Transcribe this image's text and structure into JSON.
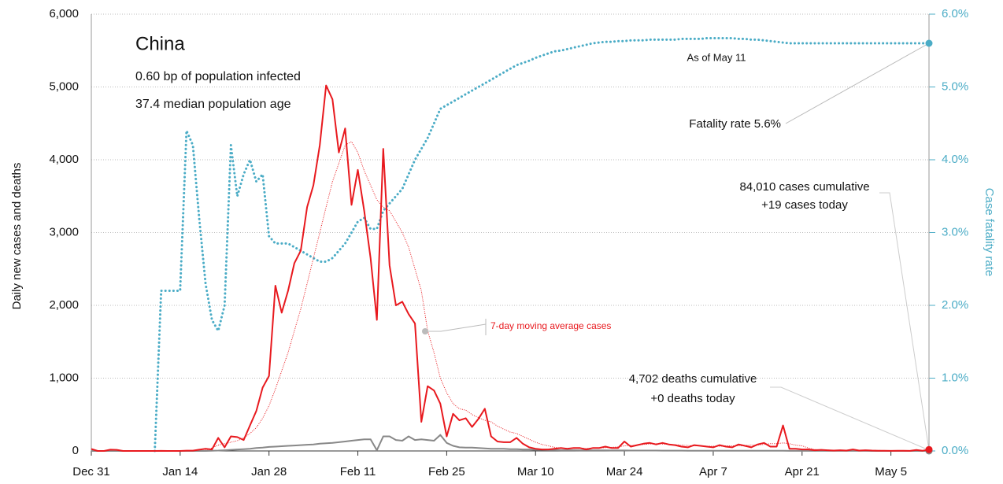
{
  "chart_data": {
    "type": "line",
    "title": "China",
    "notes": [
      "0.60 bp of population infected",
      "37.4 median population age"
    ],
    "annotations": [
      "As of May 11",
      "Fatality rate 5.6%",
      "84,010 cases cumulative",
      "+19 cases today",
      "4,702 deaths cumulative",
      "+0 deaths today"
    ],
    "ylabel": "Daily new cases and deaths",
    "y2label": "Case fatality rate",
    "categories": [
      "Dec 31",
      null,
      null,
      null,
      null,
      null,
      null,
      null,
      null,
      null,
      null,
      null,
      null,
      null,
      "Jan 14",
      null,
      null,
      null,
      null,
      null,
      null,
      null,
      null,
      null,
      null,
      null,
      null,
      null,
      "Jan 28",
      null,
      null,
      null,
      null,
      null,
      null,
      null,
      null,
      null,
      null,
      null,
      null,
      null,
      "Feb 11",
      null,
      null,
      null,
      null,
      null,
      null,
      null,
      null,
      null,
      null,
      null,
      null,
      null,
      "Feb 25",
      null,
      null,
      null,
      null,
      null,
      null,
      null,
      null,
      null,
      null,
      null,
      null,
      null,
      "Mar 10",
      null,
      null,
      null,
      null,
      null,
      null,
      null,
      null,
      null,
      null,
      null,
      null,
      null,
      "Mar 24",
      null,
      null,
      null,
      null,
      null,
      null,
      null,
      null,
      null,
      null,
      null,
      null,
      null,
      "Apr 7",
      null,
      null,
      null,
      null,
      null,
      null,
      null,
      null,
      null,
      null,
      null,
      null,
      null,
      "Apr 21",
      null,
      null,
      null,
      null,
      null,
      null,
      null,
      null,
      null,
      null,
      null,
      null,
      null,
      "May 5",
      null,
      null,
      null,
      null,
      null,
      null
    ],
    "ylim": [
      0,
      6000
    ],
    "yticks": [
      0,
      {
        "value": 1000,
        "label": "1,000"
      },
      {
        "value": 2000,
        "label": "2,000"
      },
      {
        "value": 3000,
        "label": "3,000"
      },
      {
        "value": 4000,
        "label": "4,000"
      },
      {
        "value": 5000,
        "label": "5,000"
      },
      {
        "value": 6000,
        "label": "6,000"
      }
    ],
    "y2lim": [
      0,
      6
    ],
    "y2ticks": [
      {
        "value": 0,
        "label": "0.0%"
      },
      {
        "value": 1,
        "label": "1.0%"
      },
      {
        "value": 2,
        "label": "2.0%"
      },
      {
        "value": 3,
        "label": "3.0%"
      },
      {
        "value": 4,
        "label": "4.0%"
      },
      {
        "value": 5,
        "label": "5.0%"
      },
      {
        "value": 6,
        "label": "6.0%"
      }
    ],
    "grid": true,
    "series": [
      {
        "color": "#4bacc6",
        "style": "dotted",
        "axis": "y2",
        "values": [
          null,
          null,
          null,
          null,
          null,
          null,
          null,
          null,
          null,
          null,
          0,
          2.2,
          2.2,
          2.2,
          2.2,
          4.4,
          4.2,
          3.2,
          2.3,
          1.8,
          1.65,
          2.0,
          4.2,
          3.5,
          3.8,
          4.0,
          3.7,
          3.8,
          2.95,
          2.85,
          2.85,
          2.85,
          2.8,
          2.75,
          2.7,
          2.65,
          2.6,
          2.6,
          2.65,
          2.75,
          2.85,
          3.0,
          3.15,
          3.2,
          3.05,
          3.05,
          3.3,
          3.4,
          3.5,
          3.6,
          3.8,
          4.0,
          4.15,
          4.3,
          4.5,
          4.7,
          4.75,
          4.8,
          4.85,
          4.9,
          4.95,
          5.0,
          5.05,
          5.1,
          5.15,
          5.2,
          5.25,
          5.3,
          5.33,
          5.36,
          5.4,
          5.43,
          5.46,
          5.49,
          5.5,
          5.52,
          5.54,
          5.56,
          5.58,
          5.6,
          5.61,
          5.62,
          5.62,
          5.63,
          5.63,
          5.64,
          5.64,
          5.64,
          5.65,
          5.65,
          5.65,
          5.65,
          5.65,
          5.66,
          5.66,
          5.66,
          5.66,
          5.67,
          5.67,
          5.67,
          5.67,
          5.67,
          5.66,
          5.66,
          5.65,
          5.65,
          5.64,
          5.63,
          5.62,
          5.61,
          5.6,
          5.6,
          5.6,
          5.6,
          5.6,
          5.6,
          5.6,
          5.6,
          5.6,
          5.6,
          5.6,
          5.6,
          5.6,
          5.6,
          5.6,
          5.6,
          5.6,
          5.6,
          5.6,
          5.6,
          5.6,
          5.6,
          5.6
        ]
      },
      {
        "name": "7-day moving average cases",
        "color": "#e8191e",
        "style": "thin-dotted",
        "values": [
          4,
          4,
          4,
          4,
          4,
          2,
          2,
          2,
          0,
          0,
          0,
          0,
          0,
          0,
          0,
          1,
          1,
          4,
          8,
          40,
          80,
          100,
          120,
          140,
          180,
          240,
          320,
          450,
          620,
          850,
          1100,
          1350,
          1650,
          1950,
          2300,
          2650,
          3000,
          3350,
          3700,
          3950,
          4200,
          4250,
          4100,
          3850,
          3650,
          3450,
          3350,
          3300,
          3150,
          3000,
          2800,
          2500,
          2200,
          1650,
          1350,
          1000,
          800,
          650,
          580,
          560,
          500,
          460,
          420,
          400,
          340,
          300,
          260,
          240,
          200,
          160,
          120,
          90,
          70,
          50,
          40,
          35,
          35,
          35,
          35,
          40,
          40,
          45,
          50,
          55,
          70,
          75,
          80,
          90,
          95,
          100,
          95,
          90,
          85,
          80,
          75,
          70,
          70,
          65,
          65,
          65,
          70,
          70,
          70,
          75,
          80,
          80,
          90,
          100,
          100,
          110,
          100,
          80,
          70,
          40,
          20,
          15,
          12,
          10,
          10,
          10,
          10,
          8,
          8,
          7,
          6,
          5,
          5,
          4,
          4,
          4,
          5,
          5,
          6
        ]
      },
      {
        "color": "#888888",
        "style": "solid",
        "values": [
          0,
          0,
          0,
          0,
          0,
          0,
          0,
          0,
          0,
          0,
          0,
          0,
          0,
          0,
          0,
          0,
          0,
          0,
          0,
          3,
          5,
          10,
          15,
          20,
          25,
          30,
          40,
          45,
          55,
          60,
          65,
          70,
          75,
          80,
          85,
          90,
          100,
          105,
          110,
          120,
          130,
          140,
          150,
          160,
          160,
          10,
          200,
          200,
          150,
          140,
          200,
          150,
          160,
          150,
          140,
          220,
          110,
          70,
          50,
          45,
          45,
          40,
          35,
          30,
          30,
          30,
          25,
          25,
          20,
          20,
          15,
          15,
          12,
          12,
          10,
          10,
          10,
          8,
          8,
          8,
          8,
          8,
          6,
          6,
          6,
          5,
          5,
          5,
          5,
          5,
          4,
          4,
          4,
          4,
          3,
          3,
          3,
          3,
          3,
          3,
          3,
          2,
          2,
          2,
          2,
          2,
          2,
          2,
          2,
          2,
          1,
          1,
          1,
          1,
          1,
          1,
          1,
          1,
          1,
          1,
          1,
          1,
          1,
          0,
          0,
          0,
          0,
          0,
          0,
          0,
          0,
          0,
          0
        ]
      },
      {
        "color": "#e8191e",
        "style": "solid",
        "values": [
          27,
          0,
          0,
          17,
          15,
          0,
          0,
          0,
          0,
          0,
          0,
          1,
          0,
          0,
          0,
          4,
          4,
          17,
          30,
          20,
          180,
          50,
          200,
          190,
          150,
          350,
          550,
          870,
          1030,
          2270,
          1900,
          2200,
          2580,
          2750,
          3350,
          3650,
          4200,
          5020,
          4830,
          4100,
          4430,
          3380,
          3860,
          3300,
          2650,
          1800,
          4150,
          2550,
          2000,
          2050,
          1880,
          1750,
          400,
          890,
          830,
          650,
          200,
          510,
          420,
          450,
          330,
          440,
          580,
          200,
          130,
          120,
          120,
          180,
          100,
          50,
          30,
          20,
          20,
          30,
          40,
          30,
          40,
          40,
          20,
          40,
          40,
          60,
          40,
          40,
          130,
          60,
          80,
          100,
          110,
          90,
          110,
          90,
          80,
          60,
          50,
          80,
          70,
          60,
          50,
          80,
          60,
          50,
          90,
          70,
          50,
          90,
          110,
          60,
          60,
          350,
          30,
          30,
          20,
          20,
          10,
          15,
          10,
          5,
          10,
          5,
          20,
          5,
          10,
          5,
          3,
          2,
          1,
          2,
          2,
          1,
          14,
          3,
          19
        ]
      }
    ]
  }
}
